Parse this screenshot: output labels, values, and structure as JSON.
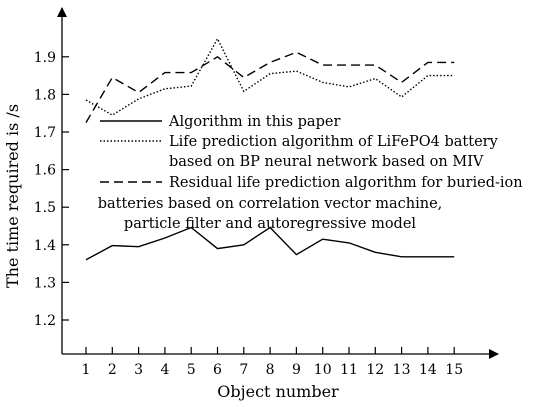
{
  "chart_data": {
    "type": "line",
    "xlabel": "Object number",
    "ylabel": "The time required is /s",
    "x": [
      1,
      2,
      3,
      4,
      5,
      6,
      7,
      8,
      9,
      10,
      11,
      12,
      13,
      14,
      15
    ],
    "xlim": [
      0.3,
      16.3
    ],
    "ylim": [
      1.1,
      2.05
    ],
    "yticks": [
      1.2,
      1.3,
      1.4,
      1.5,
      1.6,
      1.7,
      1.8,
      1.9
    ],
    "ytick_labels": [
      "1.2",
      "1.3",
      "1.4",
      "1.5",
      "1.6",
      "1.7",
      "1.8",
      "1.9"
    ],
    "xtick_labels": [
      "1",
      "2",
      "3",
      "4",
      "5",
      "6",
      "7",
      "8",
      "9",
      "10",
      "11",
      "12",
      "13",
      "14",
      "15"
    ],
    "grid": false,
    "legend_position": "center",
    "series": [
      {
        "name": "Algorithm in this paper",
        "style": "solid",
        "color": "#000000",
        "values": [
          1.36,
          1.398,
          1.395,
          1.418,
          1.446,
          1.39,
          1.4,
          1.446,
          1.374,
          1.415,
          1.405,
          1.38,
          1.368,
          1.368,
          1.368
        ]
      },
      {
        "name_lines": [
          "Life prediction algorithm of LiFePO4 battery",
          "based on BP neural network based on MIV"
        ],
        "style": "dotted",
        "color": "#000000",
        "values": [
          1.785,
          1.745,
          1.788,
          1.815,
          1.822,
          1.948,
          1.808,
          1.855,
          1.862,
          1.832,
          1.82,
          1.842,
          1.793,
          1.85,
          1.85
        ]
      },
      {
        "name_lines": [
          "Residual life prediction algorithm for buried-ion",
          "batteries based on correlation vector machine,",
          "particle filter and autoregressive model"
        ],
        "style": "dashed",
        "color": "#000000",
        "values": [
          1.725,
          1.845,
          1.805,
          1.858,
          1.858,
          1.9,
          1.845,
          1.885,
          1.912,
          1.878,
          1.878,
          1.878,
          1.832,
          1.885,
          1.885
        ]
      }
    ]
  }
}
